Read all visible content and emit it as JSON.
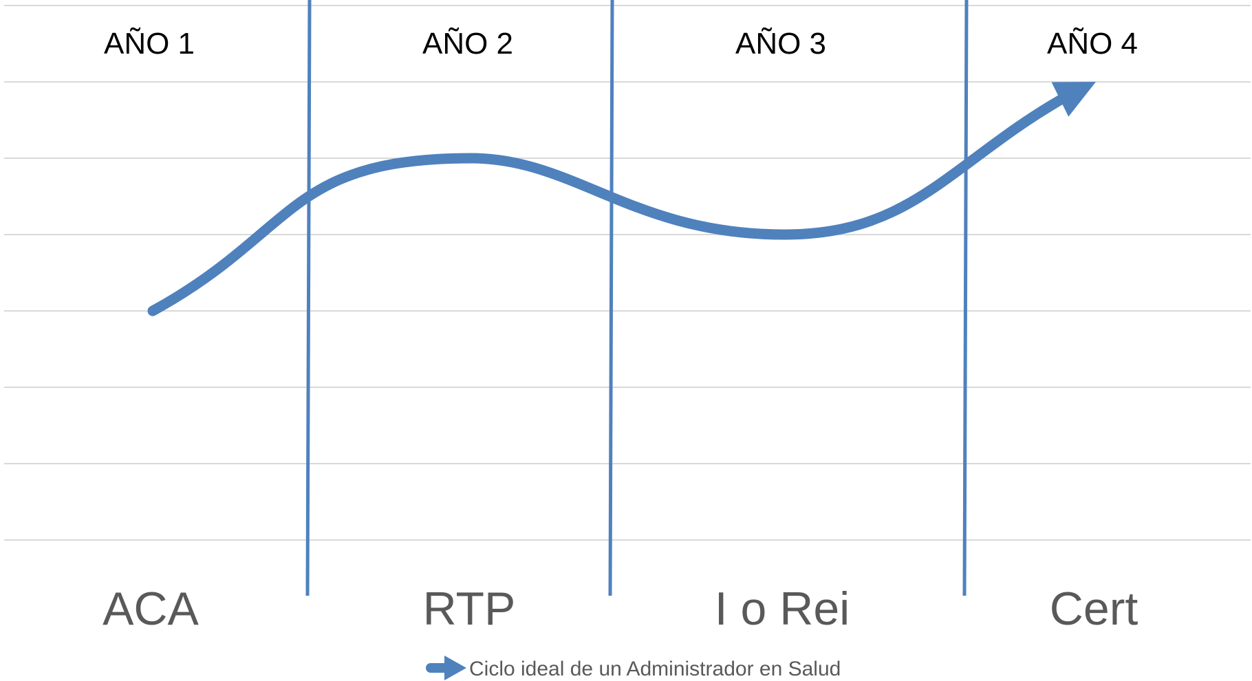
{
  "chart_data": {
    "type": "line",
    "years": [
      "AÑO 1",
      "AÑO 2",
      "AÑO 3",
      "AÑO 4"
    ],
    "categories": [
      "ACA",
      "RTP",
      "I o Rei",
      "Cert"
    ],
    "series": [
      {
        "name": "Ciclo ideal de un Administrador en Salud",
        "x": [
          1,
          2,
          3,
          4
        ],
        "values": [
          3,
          5,
          4,
          6
        ],
        "color": "#4F81BD",
        "end_marker": "arrow"
      }
    ],
    "ylim": [
      0,
      7
    ],
    "grid": true,
    "legend": "bottom-center",
    "divider_color": "#4F81BD"
  }
}
